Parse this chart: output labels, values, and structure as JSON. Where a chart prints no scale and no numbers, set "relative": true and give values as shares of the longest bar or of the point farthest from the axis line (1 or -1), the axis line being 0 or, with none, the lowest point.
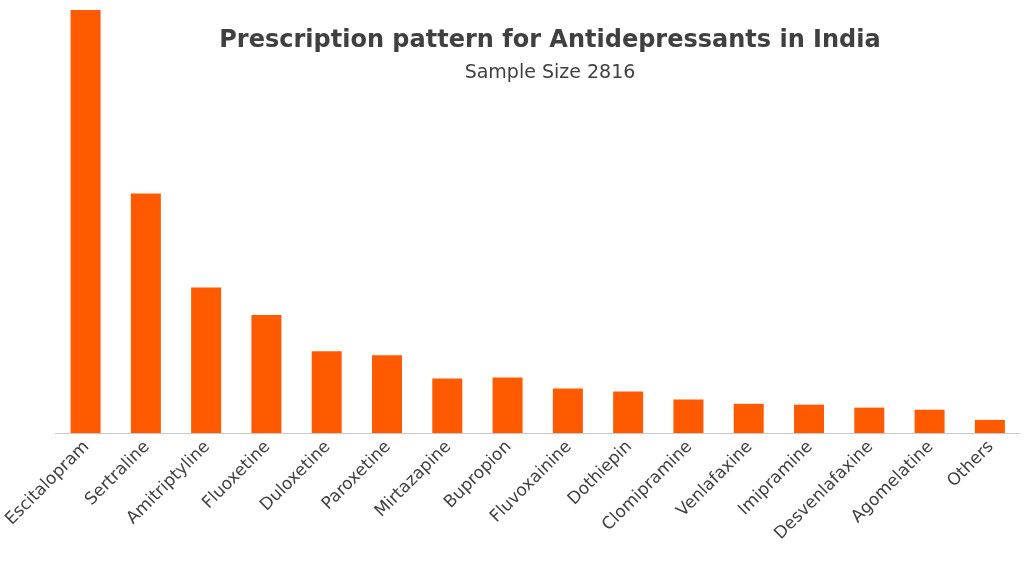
{
  "chart_data": {
    "type": "bar",
    "title": "Prescription pattern for Antidepressants in India",
    "subtitle": "Sample Size 2816",
    "relative": true,
    "categories": [
      "Escitalopram",
      "Sertraline",
      "Amitriptyline",
      "Fluoxetine",
      "Duloxetine",
      "Paroxetine",
      "Mirtazapine",
      "Bupropion",
      "Fluvoxainine",
      "Dothiepin",
      "Clomipramine",
      "Venlafaxine",
      "Imipramine",
      "Desvenlafaxine",
      "Agomelatine",
      "Others"
    ],
    "values": [
      1,
      0.566,
      0.344,
      0.279,
      0.193,
      0.184,
      0.129,
      0.131,
      0.105,
      0.098,
      0.079,
      0.069,
      0.067,
      0.06,
      0.055,
      0.031
    ],
    "color": "#ff5a00"
  }
}
